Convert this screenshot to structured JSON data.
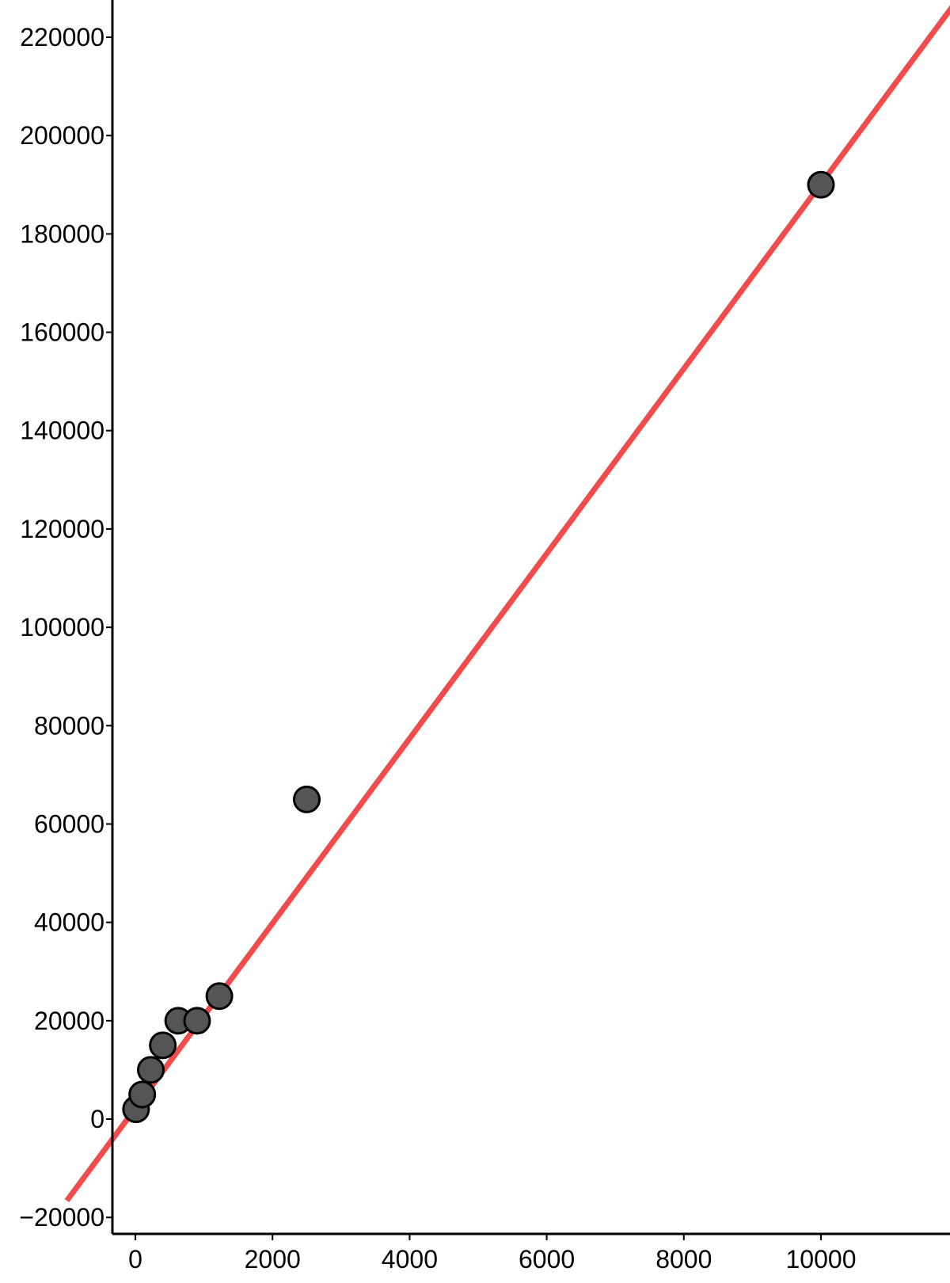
{
  "chart_data": {
    "type": "scatter",
    "title": "",
    "xlabel": "",
    "ylabel": "",
    "xlim": [
      -400,
      12000
    ],
    "ylim": [
      -25000,
      228000
    ],
    "xticks": [
      0,
      2000,
      4000,
      6000,
      8000,
      10000
    ],
    "yticks": [
      -20000,
      0,
      20000,
      40000,
      60000,
      80000,
      100000,
      120000,
      140000,
      160000,
      180000,
      200000,
      220000
    ],
    "tick_labels": {
      "x": [
        "0",
        "2000",
        "4000",
        "6000",
        "8000",
        "10000"
      ],
      "y": [
        "−20000",
        "0",
        "20000",
        "40000",
        "60000",
        "80000",
        "100000",
        "120000",
        "140000",
        "160000",
        "180000",
        "200000",
        "220000"
      ]
    },
    "grid": false,
    "series": [
      {
        "type": "scatter",
        "color": "#555555",
        "points": [
          {
            "x": 10,
            "y": 2000
          },
          {
            "x": 100,
            "y": 5000
          },
          {
            "x": 225,
            "y": 10000
          },
          {
            "x": 400,
            "y": 15000
          },
          {
            "x": 625,
            "y": 20000
          },
          {
            "x": 900,
            "y": 20000
          },
          {
            "x": 1225,
            "y": 25000
          },
          {
            "x": 2500,
            "y": 65000
          },
          {
            "x": 10000,
            "y": 190000
          }
        ]
      },
      {
        "type": "line",
        "color": "#f24b4b",
        "fit": {
          "slope": 18.8,
          "intercept": 2200
        }
      }
    ]
  }
}
